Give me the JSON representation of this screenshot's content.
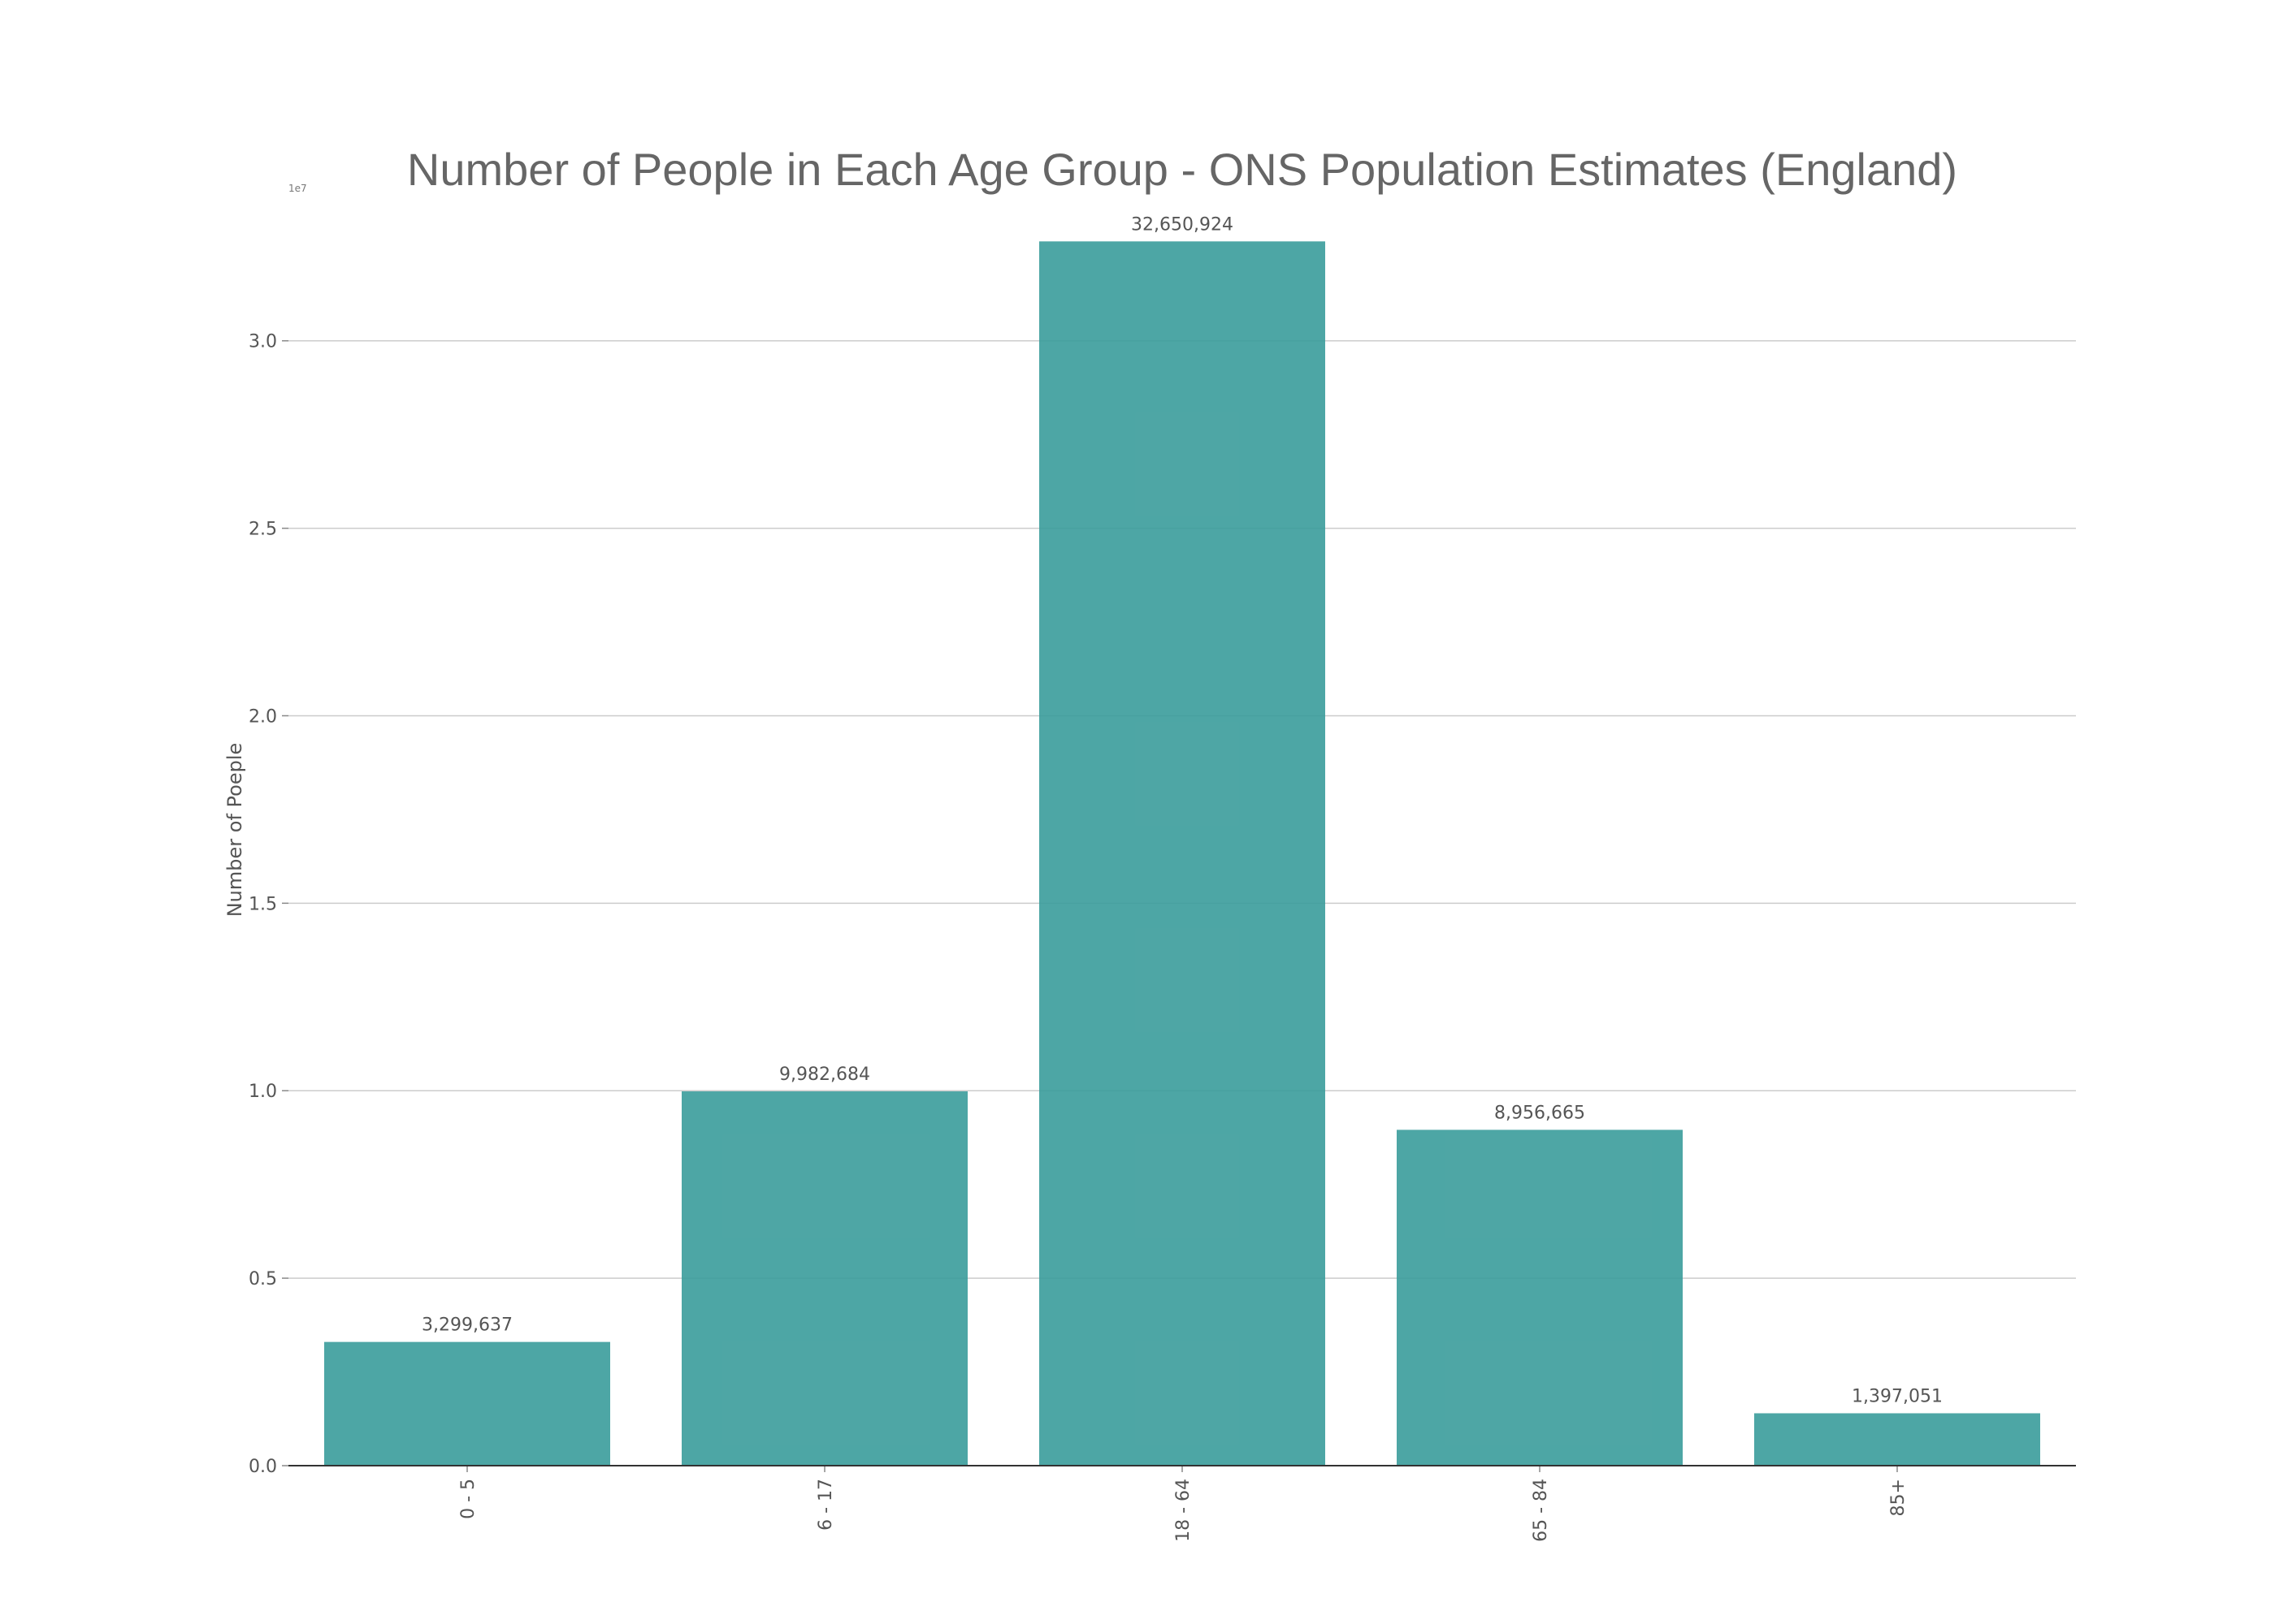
{
  "chart_data": {
    "type": "bar",
    "title": "Number of People in Each Age Group - ONS Population Estimates (England)",
    "xlabel": "",
    "ylabel": "Number of Poeple",
    "axis_offset_label": "1e7",
    "categories": [
      "0 - 5",
      "6 - 17",
      "18 - 64",
      "65 - 84",
      "85+"
    ],
    "values": [
      3299637,
      9982684,
      32650924,
      8956665,
      1397051
    ],
    "data_labels": [
      "3,299,637",
      "9,982,684",
      "32,650,924",
      "8,956,665",
      "1,397,051"
    ],
    "yticks": [
      "0.0",
      "0.5",
      "1.0",
      "1.5",
      "2.0",
      "2.5",
      "3.0"
    ],
    "ylim": [
      0,
      34000000
    ],
    "grid": true,
    "bar_color": "#3a9c9b",
    "text_color": "#666666"
  }
}
